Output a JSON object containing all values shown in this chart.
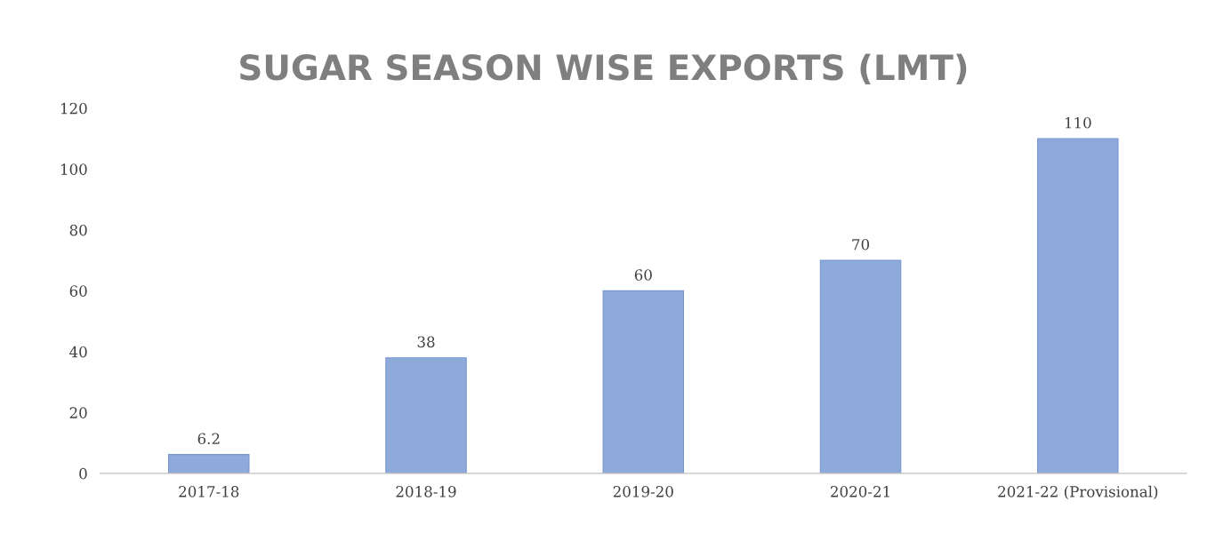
{
  "chart_data": {
    "type": "bar",
    "title": "SUGAR SEASON WISE EXPORTS (LMT)",
    "categories": [
      "2017-18",
      "2018-19",
      "2019-20",
      "2020-21",
      "2021-22 (Provisional)"
    ],
    "values": [
      6.2,
      38,
      60,
      70,
      110
    ],
    "color": "#8eaadb",
    "ylim": [
      0,
      120
    ],
    "yticks": [
      0,
      20,
      40,
      60,
      80,
      100,
      120
    ],
    "data_labels": true,
    "grid": false,
    "legend": false
  }
}
